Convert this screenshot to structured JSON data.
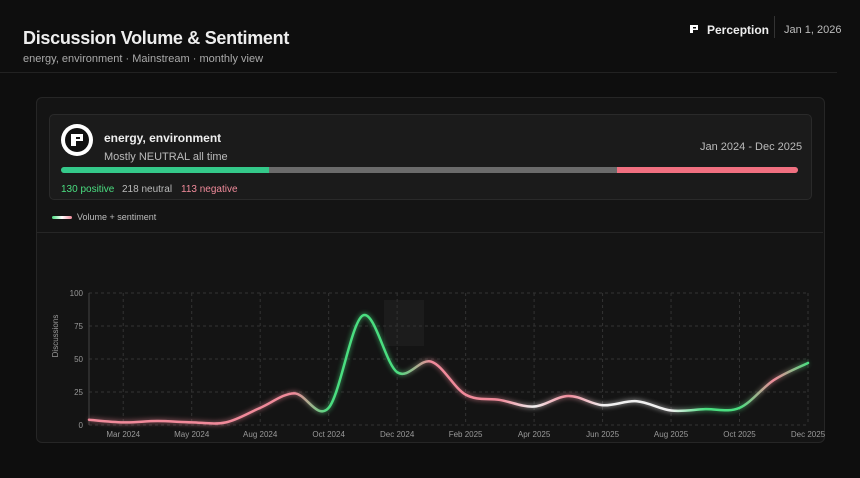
{
  "header": {
    "title": "Discussion Volume & Sentiment",
    "subtitle": "energy, environment · Mainstream · monthly view",
    "brand": "Perception",
    "date": "Jan 1, 2026"
  },
  "summary": {
    "topic": "energy, environment",
    "verdict": "Mostly NEUTRAL all time",
    "range": "Jan 2024 - Dec 2025",
    "positive": {
      "value": 130,
      "label": "130 positive"
    },
    "neutral": {
      "value": 218,
      "label": "218 neutral"
    },
    "negative": {
      "value": 113,
      "label": "113 negative"
    }
  },
  "chart_data": {
    "type": "line",
    "ylabel": "Discussions",
    "legend": "Volume + sentiment",
    "categories": [
      null,
      "Mar 2024",
      null,
      "May 2024",
      null,
      "Aug 2024",
      null,
      "Oct 2024",
      null,
      "Dec 2024",
      null,
      "Feb 2025",
      null,
      "Apr 2025",
      null,
      "Jun 2025",
      null,
      "Aug 2025",
      null,
      "Oct 2025",
      null,
      "Dec 2025"
    ],
    "series": [
      {
        "name": "Volume + sentiment",
        "values": [
          4,
          2,
          3,
          2,
          2,
          13,
          24,
          13,
          83,
          40,
          48,
          23,
          19,
          14,
          22,
          15,
          18,
          11,
          12,
          13,
          34,
          47
        ],
        "colors": [
          "#f08a9a",
          "#f08a9a",
          "#f08a9a",
          "#f08a9a",
          "#f08a9a",
          "#f08a9a",
          "#f08a9a",
          "#4ade80",
          "#4ade80",
          "#4ade80",
          "#f08a9a",
          "#f08a9a",
          "#f08a9a",
          "#f0f0f0",
          "#f08a9a",
          "#f0f0f0",
          "#f0f0f0",
          "#f0f0f0",
          "#4ade80",
          "#4ade80",
          "#f08a9a",
          "#4ade80"
        ]
      }
    ],
    "ylim": [
      0,
      100
    ],
    "yticks": [
      0,
      25,
      50,
      75,
      100
    ],
    "grid": true
  }
}
